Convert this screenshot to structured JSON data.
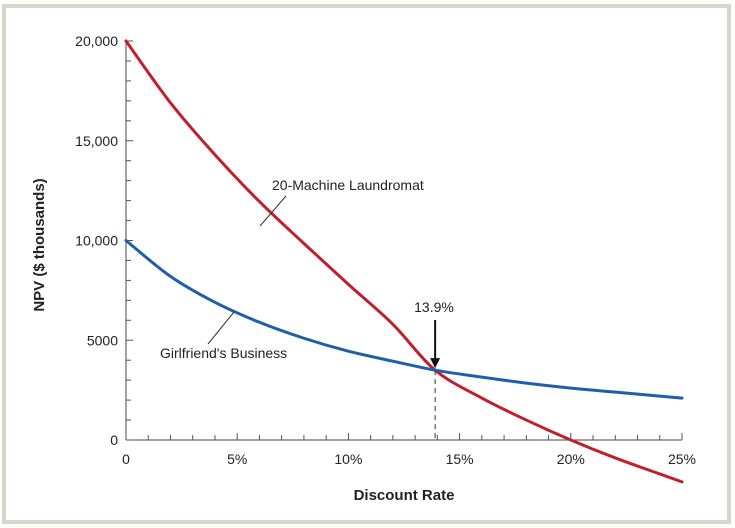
{
  "chart_data": {
    "type": "line",
    "title": "",
    "xlabel": "Discount Rate",
    "ylabel": "NPV ($ thousands)",
    "xlim": [
      0,
      25
    ],
    "ylim": [
      0,
      20000
    ],
    "x_ticks": [
      {
        "value": 0,
        "label": "0"
      },
      {
        "value": 5,
        "label": "5%"
      },
      {
        "value": 10,
        "label": "10%"
      },
      {
        "value": 15,
        "label": "15%"
      },
      {
        "value": 20,
        "label": "20%"
      },
      {
        "value": 25,
        "label": "25%"
      }
    ],
    "y_ticks": [
      {
        "value": 0,
        "label": "0"
      },
      {
        "value": 5000,
        "label": "5000"
      },
      {
        "value": 10000,
        "label": "10,000"
      },
      {
        "value": 15000,
        "label": "15,000"
      },
      {
        "value": 20000,
        "label": "20,000"
      }
    ],
    "series": [
      {
        "name": "20-Machine Laundromat",
        "color": "#c0202b",
        "x": [
          0,
          2,
          4,
          6,
          8,
          10,
          12,
          13.9,
          16,
          18,
          20,
          22,
          24,
          25
        ],
        "y": [
          20000,
          16900,
          14300,
          11950,
          9850,
          7800,
          5800,
          3500,
          2100,
          1000,
          0,
          -900,
          -1700,
          -2100
        ]
      },
      {
        "name": "Girlfriend's Business",
        "color": "#1f5ea8",
        "x": [
          0,
          2,
          4,
          6,
          8,
          10,
          12,
          13.9,
          16,
          18,
          20,
          22,
          24,
          25
        ],
        "y": [
          10000,
          8200,
          6900,
          5900,
          5100,
          4450,
          3950,
          3500,
          3150,
          2850,
          2600,
          2400,
          2200,
          2100
        ]
      }
    ],
    "annotations": [
      {
        "text": "13.9%",
        "x": 13.9,
        "y": 3500
      },
      {
        "text": "20-Machine Laundromat",
        "target_series": 0
      },
      {
        "text": "Girlfriend's Business",
        "target_series": 1
      }
    ],
    "frame_color": "#d8d6c8"
  }
}
